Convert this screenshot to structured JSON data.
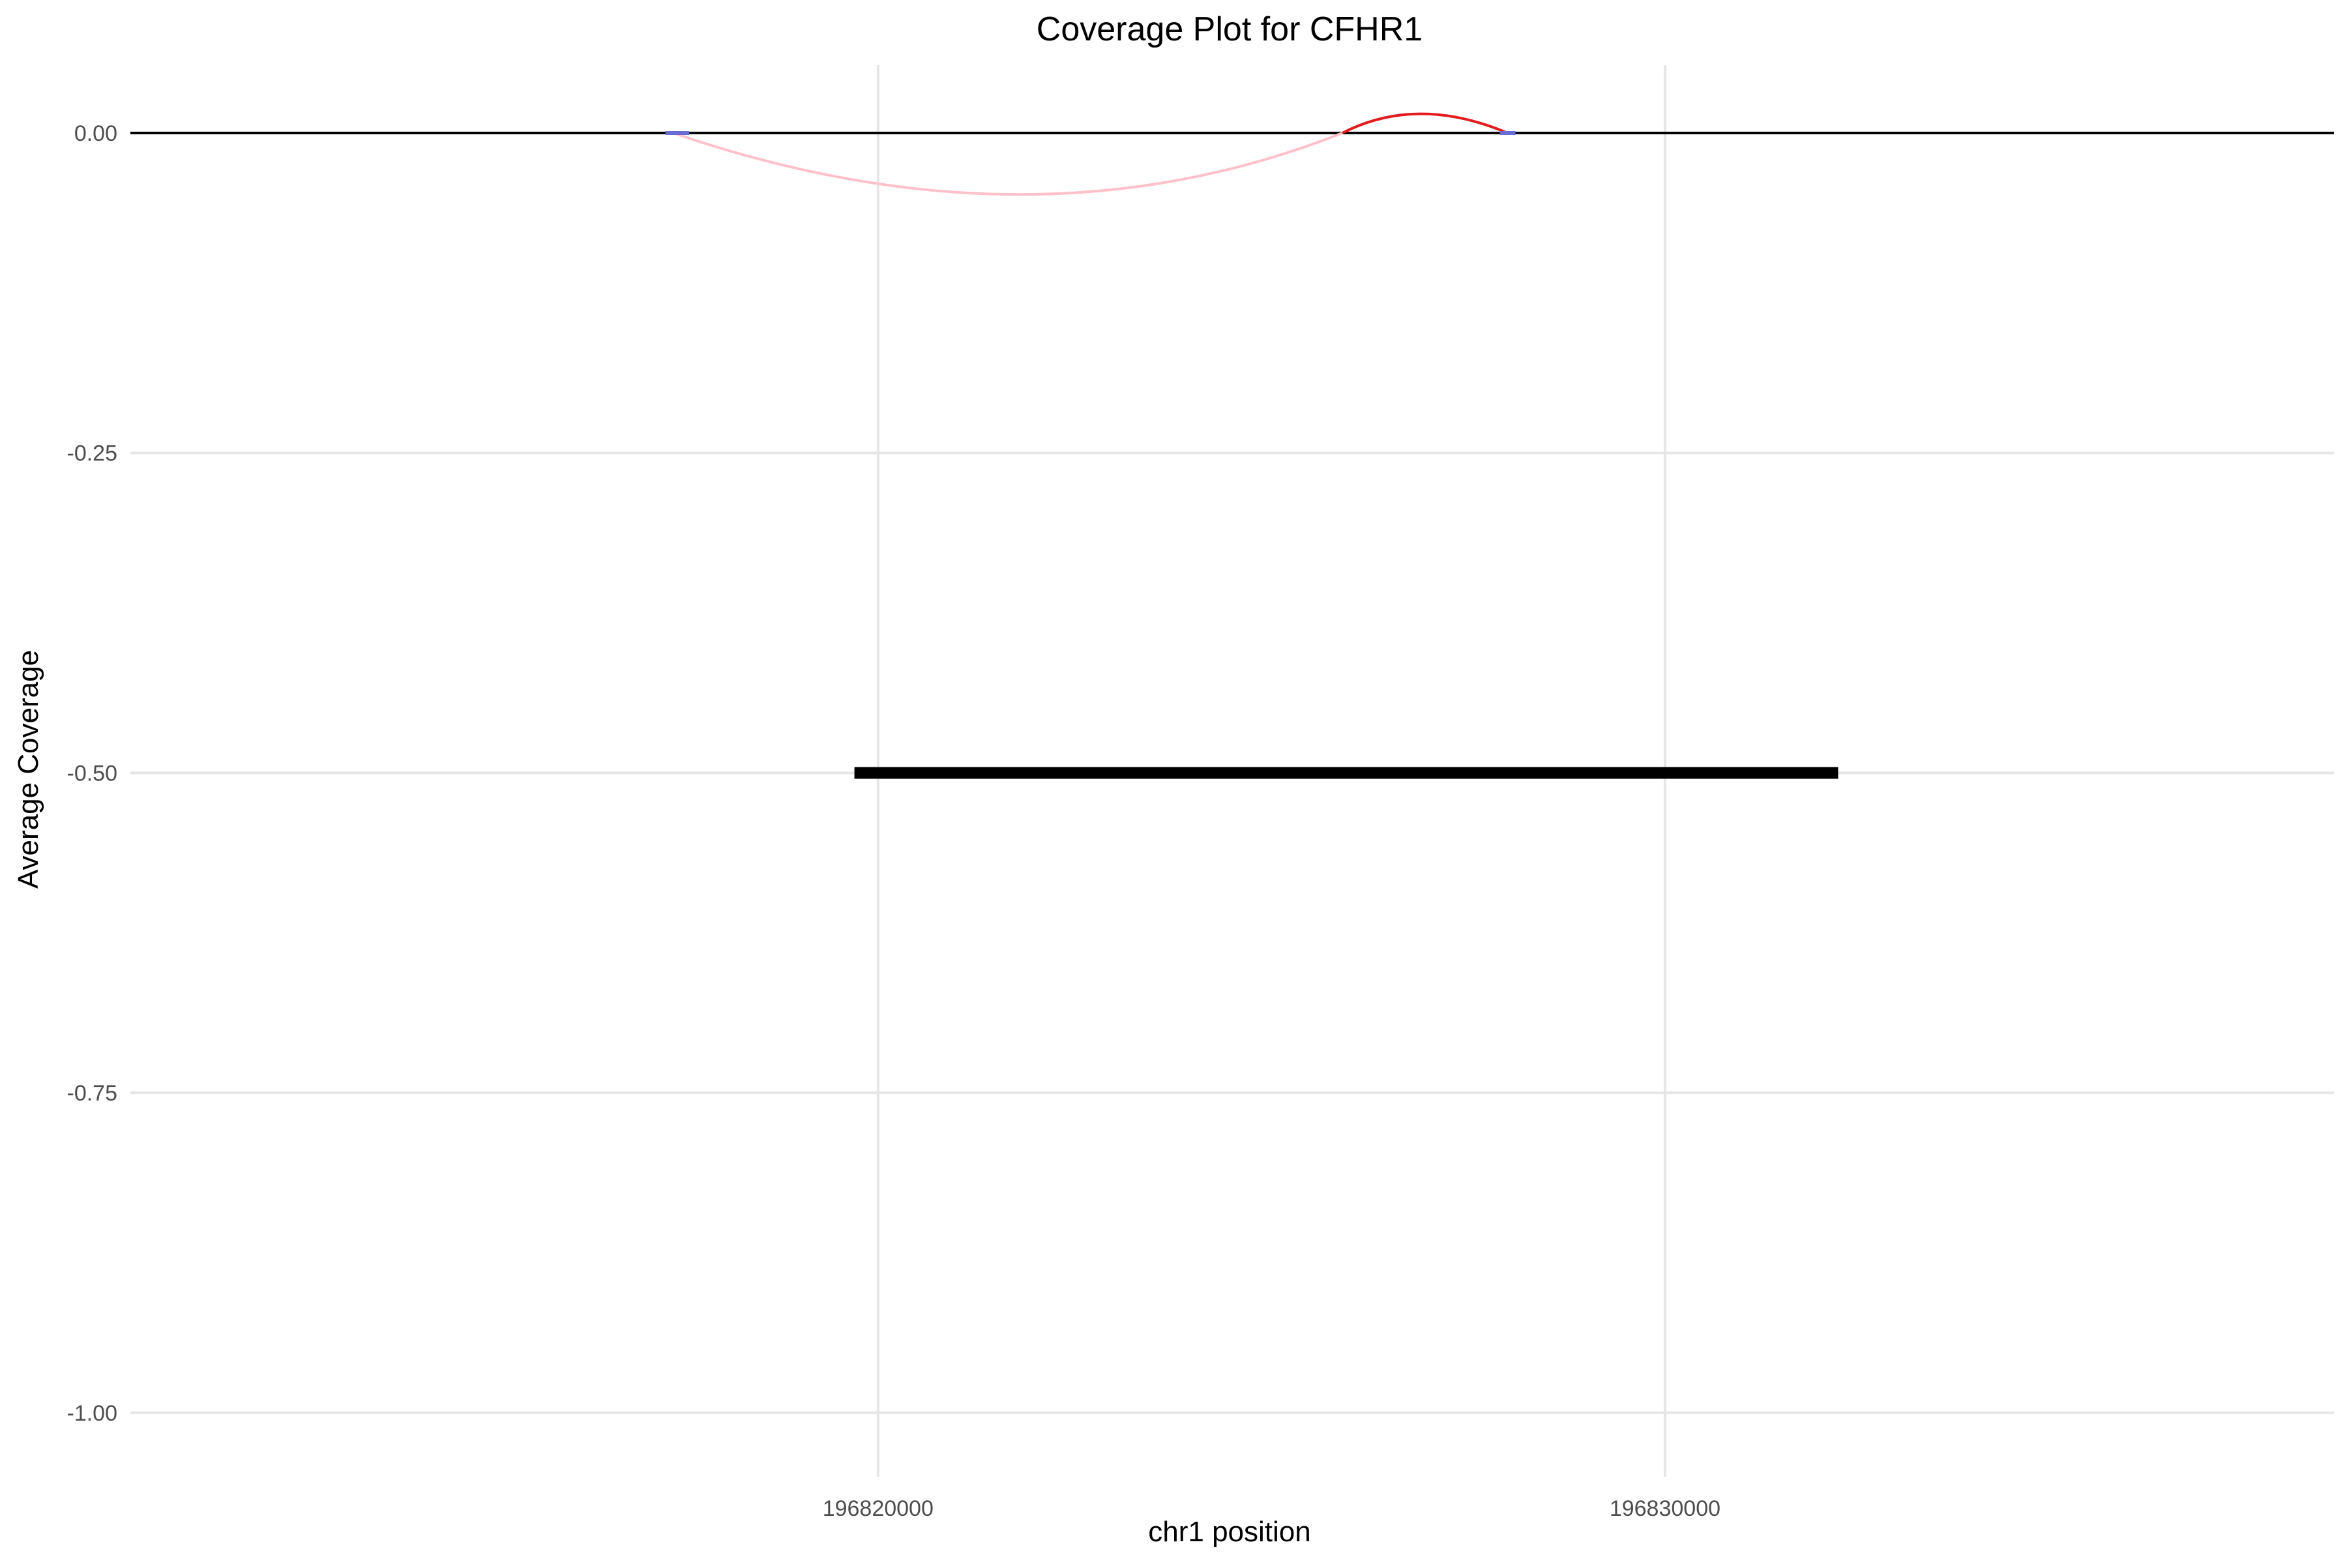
{
  "chart_data": {
    "type": "line",
    "title": "Coverage Plot for CFHR1",
    "xlabel": "chr1 position",
    "ylabel": "Average Coverage",
    "xlim": [
      196810500,
      196838500
    ],
    "ylim": [
      -1.05,
      0.053
    ],
    "x_ticks": [
      196820000,
      196830000
    ],
    "x_tick_labels": [
      "196820000",
      "196830000"
    ],
    "y_ticks": [
      0.0,
      -0.25,
      -0.5,
      -0.75,
      -1.0
    ],
    "y_tick_labels": [
      "0.00",
      "-0.25",
      "-0.50",
      "-0.75",
      "-1.00"
    ],
    "grid": true,
    "background": "#ffffff",
    "grid_color": "#e6e6e6",
    "series": [
      {
        "kind": "baseline",
        "color": "#000000",
        "y": 0.0
      },
      {
        "kind": "arc",
        "color": "#ffc0cb",
        "x_start": 196817400,
        "x_end": 196825900,
        "x_peak": 196821800,
        "y_peak": -0.048
      },
      {
        "kind": "arc",
        "color": "#e41a1c",
        "x_start": 196825900,
        "x_end": 196828000,
        "x_peak": 196826900,
        "y_peak": 0.015
      },
      {
        "kind": "exon-marker",
        "color": "#6b6bd6",
        "x_start": 196817300,
        "x_end": 196817600,
        "y": 0.0
      },
      {
        "kind": "exon-marker",
        "color": "#6b6bd6",
        "x_start": 196827900,
        "x_end": 196828100,
        "y": 0.0
      },
      {
        "kind": "gene-bar",
        "color": "#000000",
        "x_start": 196819700,
        "x_end": 196832200,
        "y": -0.5
      }
    ]
  }
}
